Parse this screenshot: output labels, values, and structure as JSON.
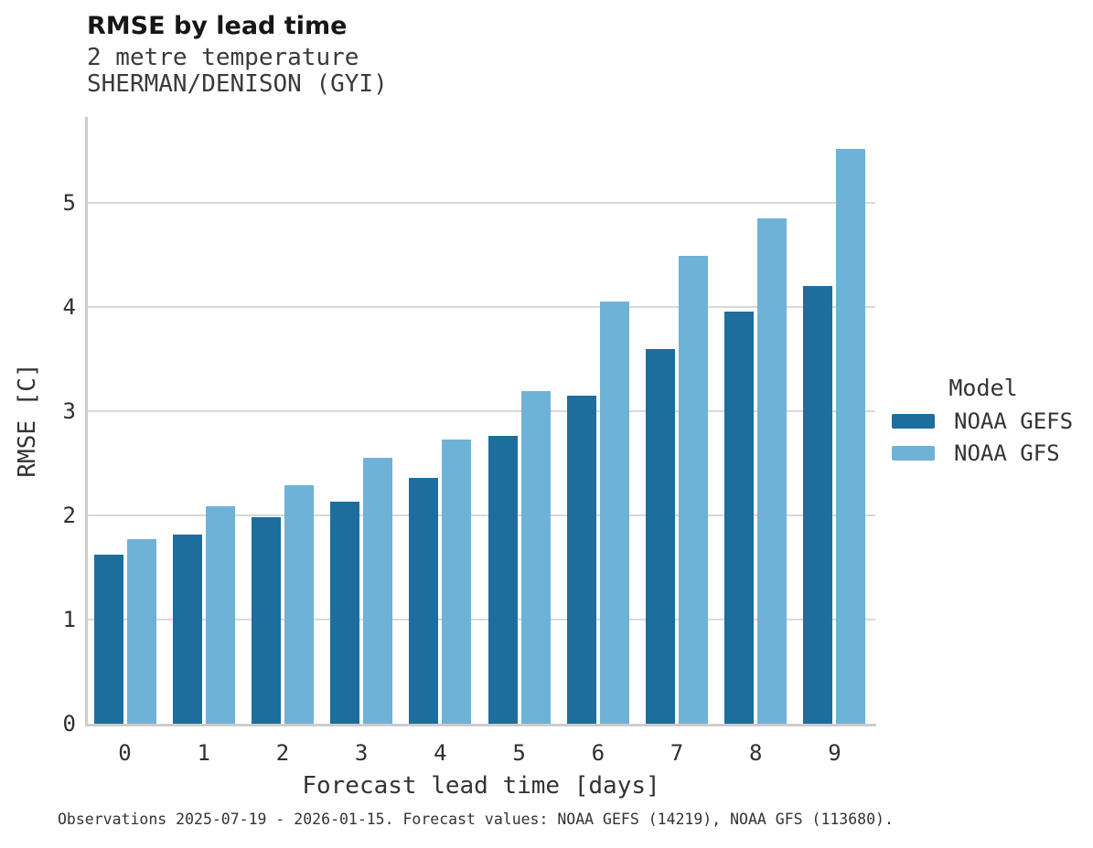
{
  "colors": {
    "gefs_dark_blue": "#1d6e9d",
    "gfs_light_blue": "#6fb2d8",
    "grid": "#d9d9d9",
    "spine": "#cccccc",
    "text": "#333333"
  },
  "chart_data": {
    "type": "bar",
    "title": "RMSE by lead time",
    "subtitle_lines": [
      "2 metre temperature",
      "SHERMAN/DENISON (GYI)"
    ],
    "categories": [
      "0",
      "1",
      "2",
      "3",
      "4",
      "5",
      "6",
      "7",
      "8",
      "9"
    ],
    "series": [
      {
        "name": "NOAA GEFS",
        "color": "#1d6e9d",
        "values": [
          1.62,
          1.82,
          1.98,
          2.13,
          2.36,
          2.76,
          3.15,
          3.6,
          3.96,
          4.2
        ]
      },
      {
        "name": "NOAA GFS",
        "color": "#6fb2d8",
        "values": [
          1.77,
          2.09,
          2.29,
          2.55,
          2.73,
          3.19,
          4.05,
          4.49,
          4.85,
          5.52
        ]
      }
    ],
    "xlabel": "Forecast lead time [days]",
    "ylabel": "RMSE [C]",
    "ylim": [
      0,
      5.83
    ],
    "yticks": [
      0,
      1,
      2,
      3,
      4,
      5
    ],
    "grid": "horizontal",
    "legend_position": "right",
    "legend_title": "Model",
    "caption": "Observations 2025-07-19 - 2026-01-15. Forecast values: NOAA GEFS (14219), NOAA GFS (113680)."
  }
}
